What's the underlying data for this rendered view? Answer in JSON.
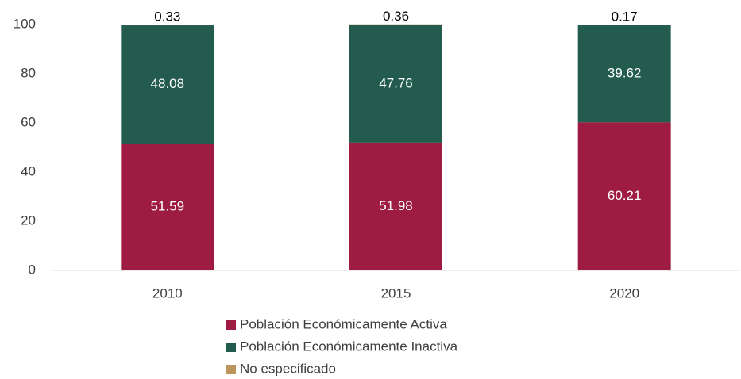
{
  "chart_data": {
    "type": "stacked_bar",
    "categories": [
      "2010",
      "2015",
      "2020"
    ],
    "series": [
      {
        "name": "Población Económicamente Activa",
        "color": "#9e1b42",
        "values": [
          51.59,
          51.98,
          60.21
        ]
      },
      {
        "name": "Población Económicamente Inactiva",
        "color": "#235b4e",
        "values": [
          48.08,
          47.76,
          39.62
        ]
      },
      {
        "name": "No especificado",
        "color": "#bc955c",
        "values": [
          0.33,
          0.36,
          0.17
        ]
      }
    ],
    "ylim": [
      0,
      100
    ],
    "yticks": [
      0,
      20,
      40,
      60,
      80,
      100
    ],
    "grid": false,
    "legend": "bottom"
  }
}
